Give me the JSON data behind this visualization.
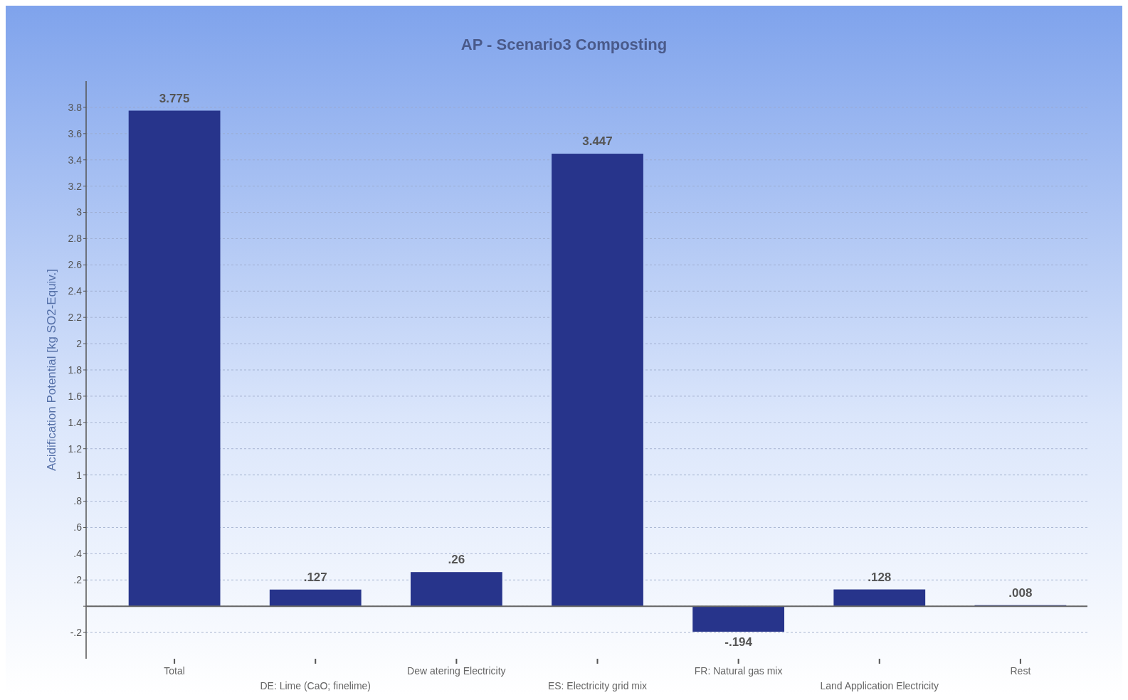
{
  "chart_data": {
    "type": "bar",
    "title": "AP - Scenario3 Composting",
    "ylabel": "Acidification Potential [kg SO2-Equiv.]",
    "categories": [
      "Total",
      "DE: Lime (CaO; finelime)",
      "Dew atering Electricity",
      "ES: Electricity grid mix",
      "FR: Natural gas mix",
      "Land Application Electricity",
      "Rest"
    ],
    "values": [
      3.775,
      0.127,
      0.26,
      3.447,
      -0.194,
      0.128,
      0.008
    ],
    "value_labels": [
      "3.775",
      ".127",
      ".26",
      "3.447",
      "-.194",
      ".128",
      ".008"
    ],
    "color": "#27348b",
    "ylim": [
      -0.4,
      4.0
    ],
    "yticks": [
      {
        "value": -0.2,
        "label": "-.2"
      },
      {
        "value": 0,
        "label": null
      },
      {
        "value": 0.2,
        "label": ".2"
      },
      {
        "value": 0.4,
        "label": ".4"
      },
      {
        "value": 0.6,
        "label": ".6"
      },
      {
        "value": 0.8,
        "label": ".8"
      },
      1,
      {
        "value": 1.2,
        "label": "1.2"
      },
      {
        "value": 1.4,
        "label": "1.4"
      },
      {
        "value": 1.6,
        "label": "1.6"
      },
      {
        "value": 1.8,
        "label": "1.8"
      },
      2,
      {
        "value": 2.2,
        "label": "2.2"
      },
      {
        "value": 2.4,
        "label": "2.4"
      },
      {
        "value": 2.6,
        "label": "2.6"
      },
      {
        "value": 2.8,
        "label": "2.8"
      },
      3,
      {
        "value": 3.2,
        "label": "3.2"
      },
      {
        "value": 3.4,
        "label": "3.4"
      },
      {
        "value": 3.6,
        "label": "3.6"
      },
      {
        "value": 3.8,
        "label": "3.8"
      }
    ],
    "grid": "y"
  }
}
